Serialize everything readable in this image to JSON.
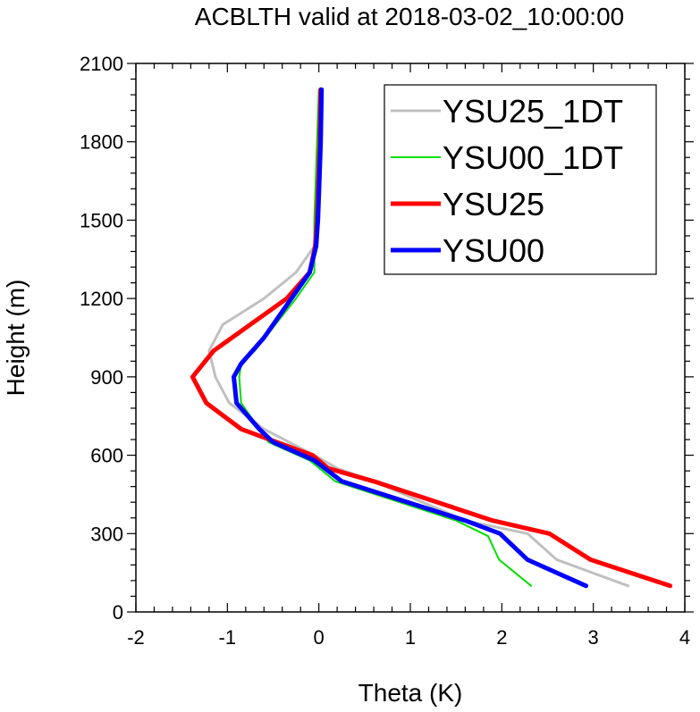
{
  "chart_data": {
    "type": "line",
    "title": "ACBLTH valid at 2018-03-02_10:00:00",
    "xlabel": "Theta (K)",
    "ylabel": "Height (m)",
    "xlim": [
      -2,
      4
    ],
    "ylim": [
      0,
      2100
    ],
    "xticks": [
      -2,
      -1,
      0,
      1,
      2,
      3,
      4
    ],
    "yticks": [
      0,
      300,
      600,
      900,
      1200,
      1500,
      1800,
      2100
    ],
    "legend_position": "top-right",
    "grid": false,
    "series": [
      {
        "name": "YSU25_1DT",
        "color": "#c0c0c0",
        "line_width": 3,
        "x": [
          3.38,
          2.6,
          2.28,
          1.6,
          0.6,
          0.2,
          -0.05,
          -0.6,
          -0.98,
          -1.13,
          -1.2,
          -1.05,
          -0.6,
          -0.25,
          -0.05,
          0.0,
          0.0,
          0.01,
          0.01,
          0.02
        ],
        "y": [
          100,
          200,
          300,
          350,
          500,
          550,
          600,
          700,
          800,
          900,
          1000,
          1100,
          1200,
          1300,
          1400,
          1500,
          1600,
          1700,
          1800,
          2000
        ]
      },
      {
        "name": "YSU00_1DT",
        "color": "#00e000",
        "line_width": 2,
        "x": [
          2.32,
          1.97,
          1.85,
          1.5,
          0.18,
          -0.1,
          -0.55,
          -0.85,
          -0.87,
          -0.85,
          -0.7,
          -0.25,
          -0.05,
          -0.05,
          -0.05,
          -0.04,
          -0.03,
          -0.02,
          -0.01,
          0.0
        ],
        "y": [
          100,
          200,
          290,
          350,
          500,
          580,
          650,
          800,
          900,
          950,
          1000,
          1200,
          1300,
          1400,
          1500,
          1600,
          1700,
          1800,
          1900,
          2000
        ]
      },
      {
        "name": "YSU25",
        "color": "#ff0000",
        "line_width": 5,
        "x": [
          3.84,
          2.97,
          2.52,
          1.9,
          0.6,
          0.1,
          -0.07,
          -0.85,
          -1.23,
          -1.38,
          -1.15,
          -0.75,
          -0.35,
          -0.1,
          -0.04,
          -0.02,
          -0.01,
          0.0,
          0.01,
          0.02
        ],
        "y": [
          100,
          200,
          300,
          350,
          500,
          550,
          600,
          700,
          800,
          900,
          1000,
          1100,
          1200,
          1300,
          1400,
          1500,
          1600,
          1700,
          1800,
          2000
        ]
      },
      {
        "name": "YSU00",
        "color": "#0000ff",
        "line_width": 5,
        "x": [
          2.92,
          2.28,
          1.98,
          1.6,
          0.25,
          -0.05,
          -0.5,
          -0.65,
          -0.9,
          -0.93,
          -0.85,
          -0.6,
          -0.3,
          -0.1,
          -0.03,
          -0.01,
          0.0,
          0.01,
          0.02,
          0.03
        ],
        "y": [
          100,
          200,
          300,
          350,
          500,
          580,
          650,
          700,
          800,
          900,
          950,
          1050,
          1200,
          1300,
          1400,
          1500,
          1600,
          1700,
          1800,
          2000
        ]
      }
    ]
  }
}
